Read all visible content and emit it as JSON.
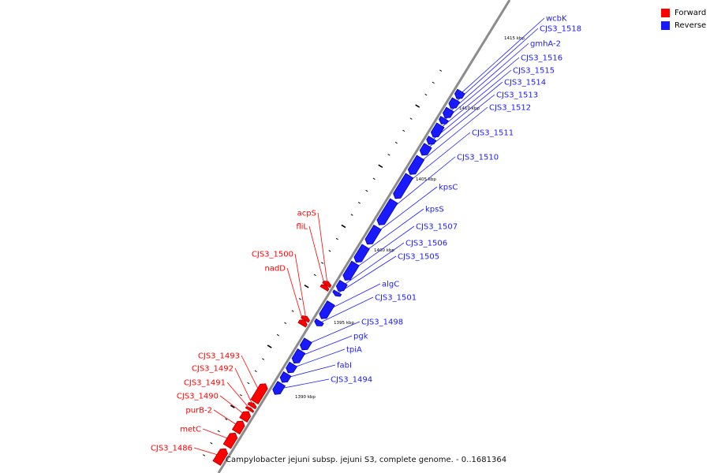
{
  "colors": {
    "forward": "#ff0000",
    "reverse": "#1a1aff",
    "forward_dark": "#b00000",
    "reverse_dark": "#0000b0",
    "backbone": "#8c8c8c",
    "tick": "#000000"
  },
  "legend": {
    "forward": "Forward",
    "reverse": "Reverse"
  },
  "caption": "Campylobacter jejuni subsp. jejuni S3, complete genome. - 0..1681364",
  "ruler": {
    "labels": [
      "1415 kbp",
      "1410 kbp",
      "1405 kbp",
      "1400 kbp",
      "1395 kbp",
      "1390 kbp"
    ]
  },
  "features": [
    {
      "name": "wcbK",
      "strand": "reverse",
      "start": 1416.9,
      "end": 1417.5
    },
    {
      "name": "CJS3_1518",
      "strand": "reverse",
      "start": 1416.1,
      "end": 1416.8
    },
    {
      "name": "gmhA-2",
      "strand": "reverse",
      "start": 1415.3,
      "end": 1416.0
    },
    {
      "name": "CJS3_1516",
      "strand": "reverse",
      "start": 1414.8,
      "end": 1415.25
    },
    {
      "name": "CJS3_1515",
      "strand": "reverse",
      "start": 1413.7,
      "end": 1414.7
    },
    {
      "name": "CJS3_1514",
      "strand": "reverse",
      "start": 1413.1,
      "end": 1413.6
    },
    {
      "name": "CJS3_1513",
      "strand": "reverse",
      "start": 1412.2,
      "end": 1413.0
    },
    {
      "name": "CJS3_1512",
      "strand": "reverse",
      "start": 1410.6,
      "end": 1412.0
    },
    {
      "name": "CJS3_1511",
      "strand": "reverse",
      "start": 1408.6,
      "end": 1410.5
    },
    {
      "name": "CJS3_1510",
      "strand": "reverse",
      "start": 1406.4,
      "end": 1408.4
    },
    {
      "name": "kpsC",
      "strand": "reverse",
      "start": 1404.8,
      "end": 1406.2
    },
    {
      "name": "kpsS",
      "strand": "reverse",
      "start": 1403.3,
      "end": 1404.6
    },
    {
      "name": "CJS3_1507",
      "strand": "reverse",
      "start": 1401.8,
      "end": 1403.2
    },
    {
      "name": "CJS3_1506",
      "strand": "reverse",
      "start": 1400.9,
      "end": 1401.6
    },
    {
      "name": "CJS3_1505",
      "strand": "reverse",
      "start": 1400.5,
      "end": 1400.8
    },
    {
      "name": "acpS",
      "strand": "forward",
      "start": 1400.8,
      "end": 1401.1
    },
    {
      "name": "fliL",
      "strand": "forward",
      "start": 1400.5,
      "end": 1400.8
    },
    {
      "name": "algC",
      "strand": "reverse",
      "start": 1398.6,
      "end": 1399.9
    },
    {
      "name": "CJS3_1501",
      "strand": "reverse",
      "start": 1398.0,
      "end": 1398.4
    },
    {
      "name": "CJS3_1500",
      "strand": "forward",
      "start": 1397.9,
      "end": 1398.2
    },
    {
      "name": "nadD",
      "strand": "forward",
      "start": 1397.5,
      "end": 1397.9
    },
    {
      "name": "CJS3_1498",
      "strand": "reverse",
      "start": 1396.0,
      "end": 1396.8
    },
    {
      "name": "pgk",
      "strand": "reverse",
      "start": 1394.9,
      "end": 1395.9
    },
    {
      "name": "tpiA",
      "strand": "reverse",
      "start": 1394.1,
      "end": 1394.8
    },
    {
      "name": "fabI",
      "strand": "reverse",
      "start": 1393.3,
      "end": 1394.0
    },
    {
      "name": "CJS3_1494",
      "strand": "reverse",
      "start": 1392.3,
      "end": 1393.2
    },
    {
      "name": "CJS3_1493",
      "strand": "forward",
      "start": 1391.1,
      "end": 1392.6
    },
    {
      "name": "CJS3_1492",
      "strand": "forward",
      "start": 1390.7,
      "end": 1391.0
    },
    {
      "name": "CJS3_1491",
      "strand": "forward",
      "start": 1390.4,
      "end": 1390.6
    },
    {
      "name": "CJS3_1490",
      "strand": "forward",
      "start": 1389.6,
      "end": 1390.3
    },
    {
      "name": "purB-2",
      "strand": "forward",
      "start": 1388.6,
      "end": 1389.5
    },
    {
      "name": "metC",
      "strand": "forward",
      "start": 1387.4,
      "end": 1388.5
    },
    {
      "name": "CJS3_1486",
      "strand": "forward",
      "start": 1386.0,
      "end": 1387.2
    }
  ]
}
